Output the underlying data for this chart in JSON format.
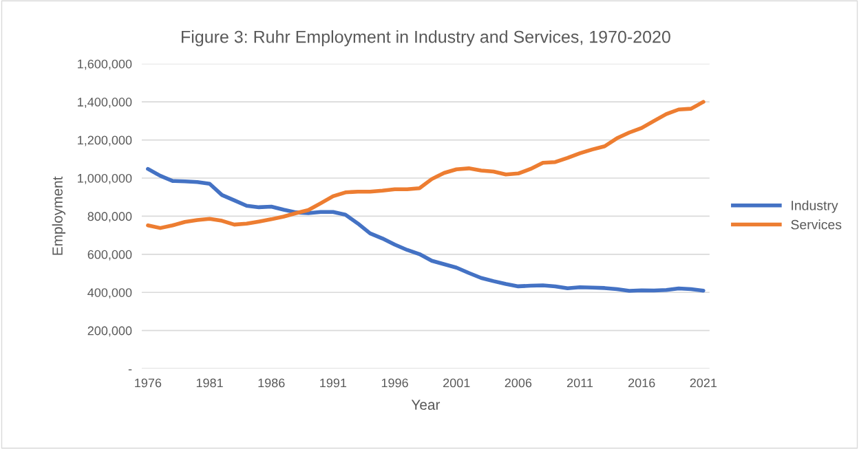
{
  "chart_data": {
    "type": "line",
    "title": "Figure 3: Ruhr Employment in Industry and Services, 1970-2020",
    "xlabel": "Year",
    "ylabel": "Employment",
    "categories": [
      "1976",
      null,
      null,
      null,
      null,
      "1981",
      null,
      null,
      null,
      null,
      "1986",
      null,
      null,
      null,
      null,
      "1991",
      null,
      null,
      null,
      null,
      "1996",
      null,
      null,
      null,
      null,
      "2001",
      null,
      null,
      null,
      null,
      "2006",
      null,
      null,
      null,
      null,
      "2011",
      null,
      null,
      null,
      null,
      "2016",
      null,
      null,
      null,
      null,
      "2021"
    ],
    "series": [
      {
        "name": "Industry",
        "color": "#4472c4",
        "values": [
          1048000,
          1012000,
          985000,
          983000,
          979000,
          970000,
          911000,
          883000,
          855000,
          847000,
          850000,
          834000,
          820000,
          816000,
          822000,
          822000,
          808000,
          762000,
          710000,
          683000,
          651000,
          623000,
          601000,
          566000,
          548000,
          530000,
          502000,
          476000,
          459000,
          444000,
          432000,
          435000,
          437000,
          432000,
          422000,
          427000,
          425000,
          423000,
          417000,
          408000,
          411000,
          410000,
          413000,
          421000,
          417000,
          409000
        ]
      },
      {
        "name": "Services",
        "color": "#ed7d31",
        "values": [
          752000,
          738000,
          752000,
          770000,
          780000,
          786000,
          776000,
          756000,
          761000,
          772000,
          784000,
          798000,
          816000,
          832000,
          868000,
          905000,
          925000,
          929000,
          929000,
          934000,
          941000,
          941000,
          947000,
          995000,
          1027000,
          1046000,
          1051000,
          1040000,
          1034000,
          1019000,
          1024000,
          1048000,
          1080000,
          1084000,
          1106000,
          1130000,
          1150000,
          1167000,
          1209000,
          1239000,
          1263000,
          1300000,
          1336000,
          1360000,
          1364000,
          1400000
        ]
      }
    ],
    "ylim": [
      0,
      1600000
    ],
    "yticks": [
      {
        "value": 0,
        "label": "-"
      },
      {
        "value": 200000,
        "label": "200,000"
      },
      {
        "value": 400000,
        "label": "400,000"
      },
      {
        "value": 600000,
        "label": "600,000"
      },
      {
        "value": 800000,
        "label": "800,000"
      },
      {
        "value": 1000000,
        "label": "1,000,000"
      },
      {
        "value": 1200000,
        "label": "1,200,000"
      },
      {
        "value": 1400000,
        "label": "1,400,000"
      },
      {
        "value": 1600000,
        "label": "1,600,000"
      }
    ],
    "grid": "y",
    "legend": "right",
    "marker": "none",
    "line_style": "solid"
  }
}
